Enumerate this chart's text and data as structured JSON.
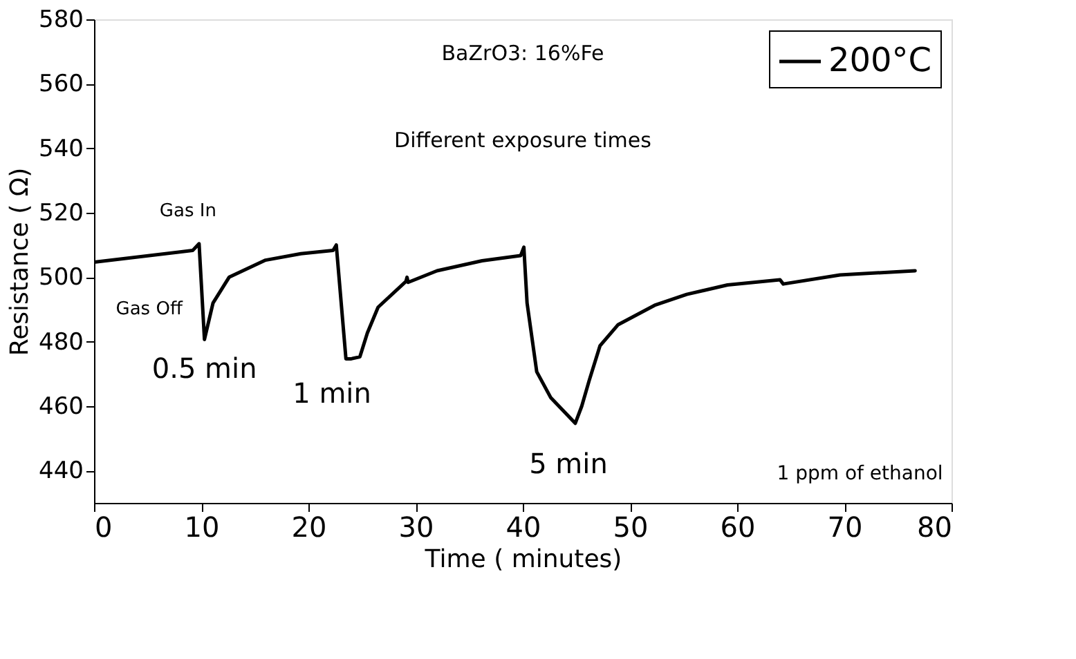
{
  "chart_data": {
    "type": "line",
    "xlabel": "Time (  minutes)",
    "ylabel": "Resistance ( Ω)",
    "xlim": [
      0,
      80
    ],
    "xticks": [
      0,
      10,
      20,
      30,
      40,
      50,
      60,
      70,
      80
    ],
    "ylim": [
      430,
      580
    ],
    "yticks": [
      440,
      460,
      480,
      500,
      520,
      540,
      560,
      580
    ],
    "grid": false,
    "legend": "top right",
    "marker": "none",
    "line_style": "solid",
    "series": [
      {
        "name": "200°C",
        "color": "#000000",
        "x": [
          0,
          9.2,
          9.8,
          10.3,
          11.1,
          12.6,
          16,
          19.3,
          22.3,
          22.6,
          23.5,
          24.0,
          24.8,
          25.5,
          26.5,
          29.1,
          29.2,
          29.3,
          32.0,
          36.2,
          39.8,
          40.1,
          40.4,
          41.3,
          42.6,
          44.9,
          45.5,
          46.2,
          47.2,
          48.9,
          52.3,
          55.3,
          59.1,
          64.0,
          64.3,
          69.6,
          76.6
        ],
        "values": [
          504.7,
          508.3,
          510.4,
          480.7,
          492,
          500,
          505.3,
          507.3,
          508.3,
          510,
          474.7,
          474.7,
          475.3,
          482.7,
          490.7,
          498.7,
          500,
          498.4,
          502,
          505.1,
          506.7,
          509.3,
          492,
          470.7,
          462.7,
          454.7,
          460,
          468,
          478.7,
          485.3,
          491.3,
          494.7,
          497.6,
          499.2,
          497.9,
          500.7,
          502
        ]
      }
    ],
    "annotations": [
      {
        "text": "Gas In",
        "x": 9.8,
        "y": 510.4
      },
      {
        "text": "Gas Off",
        "x": 10.3,
        "y": 480.7
      },
      {
        "text": "0.5 min",
        "x": 10.3,
        "y": 480.7
      },
      {
        "text": "1 min",
        "x": 24.0,
        "y": 474.7
      },
      {
        "text": "5 min",
        "x": 44.9,
        "y": 454.7
      },
      "BaZrO3: 16%Fe",
      "Different exposure times",
      "1 ppm of ethanol"
    ]
  }
}
